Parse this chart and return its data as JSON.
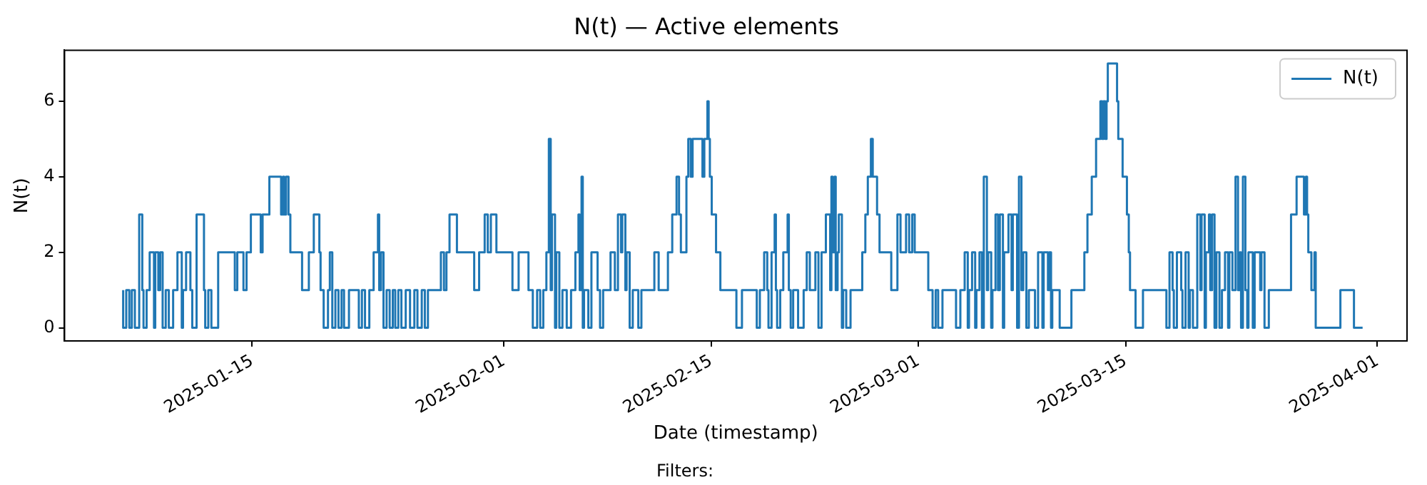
{
  "chart_data": {
    "type": "step",
    "title": "N(t) — Active elements",
    "xlabel": "Date (timestamp)",
    "ylabel": "N(t)",
    "annotations": [
      "Filters:"
    ],
    "legend": "top right",
    "grid": false,
    "marker": "none",
    "line_style": "solid",
    "xlim": [
      "2025-01-02T08:00",
      "2025-04-03T00:00"
    ],
    "xticks": [
      "2025-01-15",
      "2025-02-01",
      "2025-02-15",
      "2025-03-01",
      "2025-03-15",
      "2025-04-01"
    ],
    "ylim": [
      -0.35,
      7.35
    ],
    "yticks": [
      0,
      2,
      4,
      6
    ],
    "series": [
      {
        "name": "N(t)",
        "color": "#1f77b4",
        "x": [
          "2025-01-06T07:00",
          "2025-01-06T12:00",
          "2025-01-06T17:00",
          "2025-01-06T21:00",
          "2025-01-07T02:00",
          "2025-01-07T09:00",
          "2025-01-07T14:00",
          "2025-01-07T16:00",
          "2025-01-07T21:00",
          "2025-01-08T02:00",
          "2025-01-08T09:00",
          "2025-01-08T11:00",
          "2025-01-08T16:00",
          "2025-01-08T19:00",
          "2025-01-08T23:00",
          "2025-01-09T04:00",
          "2025-01-09T09:00",
          "2025-01-09T16:00",
          "2025-01-09T23:00",
          "2025-01-10T06:00",
          "2025-01-10T08:00",
          "2025-01-10T13:00",
          "2025-01-10T20:00",
          "2025-01-10T23:00",
          "2025-01-11T06:00",
          "2025-01-11T18:00",
          "2025-01-11T20:00",
          "2025-01-12T01:00",
          "2025-01-12T06:00",
          "2025-01-12T17:00",
          "2025-01-13T20:00",
          "2025-01-14T00:00",
          "2025-01-14T10:00",
          "2025-01-14T15:00",
          "2025-01-14T22:00",
          "2025-01-15T14:00",
          "2025-01-15T17:00",
          "2025-01-16T04:00",
          "2025-01-16T23:00",
          "2025-01-17T02:00",
          "2025-01-17T04:00",
          "2025-01-17T07:00",
          "2025-01-17T11:00",
          "2025-01-17T14:00",
          "2025-01-18T09:00",
          "2025-01-18T20:00",
          "2025-01-19T04:00",
          "2025-01-19T13:00",
          "2025-01-19T15:00",
          "2025-01-19T20:00",
          "2025-01-20T03:00",
          "2025-01-20T06:00",
          "2025-01-20T10:00",
          "2025-01-20T15:00",
          "2025-01-20T20:00",
          "2025-01-21T01:00",
          "2025-01-21T05:00",
          "2025-01-21T13:00",
          "2025-01-22T05:00",
          "2025-01-22T10:00",
          "2025-01-22T15:00",
          "2025-01-22T22:00",
          "2025-01-23T05:00",
          "2025-01-23T12:00",
          "2025-01-23T14:00",
          "2025-01-23T17:00",
          "2025-01-23T21:00",
          "2025-01-24T02:00",
          "2025-01-24T07:00",
          "2025-01-24T12:00",
          "2025-01-24T16:00",
          "2025-01-24T21:00",
          "2025-01-25T02:00",
          "2025-01-25T09:00",
          "2025-01-25T16:00",
          "2025-01-25T23:00",
          "2025-01-26T04:00",
          "2025-01-26T11:00",
          "2025-01-26T16:00",
          "2025-01-26T21:00",
          "2025-01-27T18:00",
          "2025-01-27T23:00",
          "2025-01-28T03:00",
          "2025-01-28T08:00",
          "2025-01-28T20:00",
          "2025-01-30T00:00",
          "2025-01-30T08:00",
          "2025-01-30T17:00",
          "2025-01-30T22:00",
          "2025-01-31T03:00",
          "2025-01-31T12:00",
          "2025-02-01T14:00",
          "2025-02-02T00:00",
          "2025-02-02T16:00",
          "2025-02-02T23:00",
          "2025-02-03T06:00",
          "2025-02-03T11:00",
          "2025-02-03T16:00",
          "2025-02-03T21:00",
          "2025-02-04T01:00",
          "2025-02-04T04:00",
          "2025-02-04T06:00",
          "2025-02-04T11:00",
          "2025-02-04T13:00",
          "2025-02-04T18:00",
          "2025-02-04T23:00",
          "2025-02-05T06:00",
          "2025-02-05T13:00",
          "2025-02-05T20:00",
          "2025-02-06T01:00",
          "2025-02-06T03:00",
          "2025-02-06T06:00",
          "2025-02-06T08:00",
          "2025-02-06T10:00",
          "2025-02-06T17:00",
          "2025-02-06T22:00",
          "2025-02-07T08:00",
          "2025-02-07T12:00",
          "2025-02-07T17:00",
          "2025-02-08T05:00",
          "2025-02-08T12:00",
          "2025-02-08T17:00",
          "2025-02-08T22:00",
          "2025-02-09T00:00",
          "2025-02-09T05:00",
          "2025-02-09T07:00",
          "2025-02-09T12:00",
          "2025-02-09T17:00",
          "2025-02-10T02:00",
          "2025-02-10T07:00",
          "2025-02-11T04:00",
          "2025-02-11T11:00",
          "2025-02-12T02:00",
          "2025-02-12T09:00",
          "2025-02-12T16:00",
          "2025-02-12T20:00",
          "2025-02-12T23:00",
          "2025-02-13T08:00",
          "2025-02-13T11:00",
          "2025-02-13T15:00",
          "2025-02-13T18:00",
          "2025-02-14T10:00",
          "2025-02-14T13:00",
          "2025-02-14T18:00",
          "2025-02-14T20:00",
          "2025-02-14T22:00",
          "2025-02-15T01:00",
          "2025-02-15T08:00",
          "2025-02-15T15:00",
          "2025-02-16T17:00",
          "2025-02-17T02:00",
          "2025-02-18T02:00",
          "2025-02-18T07:00",
          "2025-02-18T14:00",
          "2025-02-18T19:00",
          "2025-02-18T21:00",
          "2025-02-19T02:00",
          "2025-02-19T07:00",
          "2025-02-19T09:00",
          "2025-02-19T11:00",
          "2025-02-19T16:00",
          "2025-02-19T21:00",
          "2025-02-20T04:00",
          "2025-02-20T06:00",
          "2025-02-20T09:00",
          "2025-02-20T13:00",
          "2025-02-20T21:00",
          "2025-02-21T06:00",
          "2025-02-21T11:00",
          "2025-02-21T16:00",
          "2025-02-22T01:00",
          "2025-02-22T06:00",
          "2025-02-22T11:00",
          "2025-02-22T18:00",
          "2025-02-23T01:00",
          "2025-02-23T03:00",
          "2025-02-23T05:00",
          "2025-02-23T08:00",
          "2025-02-23T10:00",
          "2025-02-23T13:00",
          "2025-02-23T15:00",
          "2025-02-23T20:00",
          "2025-02-23T22:00",
          "2025-02-24T03:00",
          "2025-02-24T10:00",
          "2025-02-25T05:00",
          "2025-02-25T10:00",
          "2025-02-25T14:00",
          "2025-02-25T19:00",
          "2025-02-25T22:00",
          "2025-02-26T05:00",
          "2025-02-26T09:00",
          "2025-02-27T04:00",
          "2025-02-27T14:00",
          "2025-02-27T19:00",
          "2025-02-28T04:00",
          "2025-02-28T09:00",
          "2025-02-28T14:00",
          "2025-02-28T18:00",
          "2025-03-01T16:00",
          "2025-03-01T23:00",
          "2025-03-02T04:00",
          "2025-03-02T08:00",
          "2025-03-02T15:00",
          "2025-03-03T13:00",
          "2025-03-03T20:00",
          "2025-03-04T03:00",
          "2025-03-04T08:00",
          "2025-03-04T10:00",
          "2025-03-04T15:00",
          "2025-03-04T20:00",
          "2025-03-04T22:00",
          "2025-03-05T03:00",
          "2025-03-05T07:00",
          "2025-03-05T10:00",
          "2025-03-05T15:00",
          "2025-03-05T17:00",
          "2025-03-05T22:00",
          "2025-03-06T00:00",
          "2025-03-06T05:00",
          "2025-03-06T09:00",
          "2025-03-06T12:00",
          "2025-03-06T17:00",
          "2025-03-06T19:00",
          "2025-03-07T02:00",
          "2025-03-07T07:00",
          "2025-03-07T09:00",
          "2025-03-07T16:00",
          "2025-03-07T19:00",
          "2025-03-07T23:00",
          "2025-03-08T02:00",
          "2025-03-08T07:00",
          "2025-03-08T11:00",
          "2025-03-08T21:00",
          "2025-03-09T02:00",
          "2025-03-09T09:00",
          "2025-03-09T11:00",
          "2025-03-09T18:00",
          "2025-03-09T20:00",
          "2025-03-09T23:00",
          "2025-03-10T01:00",
          "2025-03-10T13:00",
          "2025-03-11T08:00",
          "2025-03-12T05:00",
          "2025-03-12T10:00",
          "2025-03-12T17:00",
          "2025-03-13T00:00",
          "2025-03-13T07:00",
          "2025-03-13T10:00",
          "2025-03-13T12:00",
          "2025-03-13T15:00",
          "2025-03-13T17:00",
          "2025-03-13T19:00",
          "2025-03-14T10:00",
          "2025-03-14T12:00",
          "2025-03-14T19:00",
          "2025-03-15T02:00",
          "2025-03-15T05:00",
          "2025-03-15T07:00",
          "2025-03-15T16:00",
          "2025-03-16T04:00",
          "2025-03-17T18:00",
          "2025-03-17T23:00",
          "2025-03-18T04:00",
          "2025-03-18T06:00",
          "2025-03-18T11:00",
          "2025-03-18T18:00",
          "2025-03-18T20:00",
          "2025-03-19T01:00",
          "2025-03-19T06:00",
          "2025-03-19T08:00",
          "2025-03-19T13:00",
          "2025-03-19T20:00",
          "2025-03-20T01:00",
          "2025-03-20T03:00",
          "2025-03-20T08:00",
          "2025-03-20T10:00",
          "2025-03-20T15:00",
          "2025-03-20T17:00",
          "2025-03-20T20:00",
          "2025-03-21T00:00",
          "2025-03-21T03:00",
          "2025-03-21T08:00",
          "2025-03-21T12:00",
          "2025-03-21T17:00",
          "2025-03-21T22:00",
          "2025-03-22T00:00",
          "2025-03-22T05:00",
          "2025-03-22T10:00",
          "2025-03-22T14:00",
          "2025-03-22T17:00",
          "2025-03-22T19:00",
          "2025-03-22T22:00",
          "2025-03-23T02:00",
          "2025-03-23T05:00",
          "2025-03-23T07:00",
          "2025-03-23T14:00",
          "2025-03-23T17:00",
          "2025-03-24T02:00",
          "2025-03-24T04:00",
          "2025-03-24T09:00",
          "2025-03-24T11:00",
          "2025-03-24T16:00",
          "2025-03-26T04:00",
          "2025-03-26T13:00",
          "2025-03-27T01:00",
          "2025-03-27T04:00",
          "2025-03-27T06:00",
          "2025-03-27T08:00",
          "2025-03-27T13:00",
          "2025-03-27T18:00",
          "2025-03-27T20:00",
          "2025-03-29T12:00",
          "2025-03-30T10:00",
          "2025-03-31T00:00"
        ],
        "values": [
          1,
          0,
          1,
          0,
          1,
          0,
          3,
          1,
          0,
          1,
          2,
          0,
          2,
          1,
          2,
          0,
          1,
          0,
          1,
          2,
          0,
          1,
          2,
          1,
          0,
          3,
          1,
          0,
          1,
          0,
          2,
          1,
          2,
          1,
          2,
          3,
          2,
          3,
          4,
          3,
          4,
          3,
          4,
          3,
          2,
          1,
          2,
          3,
          2,
          1,
          0,
          1,
          2,
          0,
          1,
          0,
          1,
          0,
          1,
          0,
          1,
          0,
          1,
          2,
          3,
          1,
          2,
          0,
          1,
          0,
          1,
          0,
          1,
          0,
          1,
          0,
          1,
          0,
          1,
          0,
          1,
          2,
          1,
          2,
          3,
          2,
          1,
          2,
          3,
          2,
          3,
          2,
          1,
          2,
          1,
          0,
          1,
          0,
          1,
          2,
          5,
          1,
          3,
          0,
          2,
          0,
          1,
          0,
          1,
          2,
          3,
          1,
          4,
          0,
          1,
          0,
          2,
          1,
          0,
          1,
          2,
          1,
          3,
          2,
          3,
          1,
          2,
          0,
          1,
          0,
          1,
          2,
          1,
          2,
          3,
          4,
          3,
          2,
          4,
          5,
          4,
          5,
          4,
          5,
          6,
          5,
          4,
          3,
          2,
          1,
          0,
          1,
          0,
          1,
          2,
          1,
          0,
          2,
          3,
          1,
          0,
          1,
          2,
          3,
          1,
          0,
          1,
          0,
          1,
          2,
          1,
          2,
          0,
          2,
          3,
          1,
          4,
          2,
          4,
          1,
          2,
          3,
          0,
          1,
          0,
          1,
          2,
          3,
          4,
          5,
          4,
          3,
          2,
          1,
          3,
          2,
          3,
          2,
          3,
          2,
          1,
          0,
          1,
          0,
          1,
          0,
          1,
          2,
          0,
          1,
          2,
          0,
          1,
          2,
          0,
          4,
          1,
          2,
          0,
          1,
          3,
          1,
          3,
          0,
          2,
          3,
          1,
          3,
          0,
          4,
          1,
          2,
          0,
          1,
          0,
          2,
          0,
          2,
          1,
          2,
          0,
          1,
          0,
          1,
          2,
          3,
          4,
          5,
          6,
          5,
          6,
          5,
          6,
          7,
          6,
          5,
          4,
          3,
          2,
          1,
          0,
          1,
          0,
          2,
          1,
          0,
          2,
          1,
          0,
          2,
          0,
          1,
          0,
          3,
          1,
          3,
          0,
          2,
          3,
          1,
          3,
          0,
          2,
          0,
          1,
          2,
          0,
          2,
          1,
          4,
          1,
          2,
          0,
          4,
          1,
          0,
          2,
          0,
          2,
          1,
          2,
          0,
          0,
          1,
          3,
          4,
          3,
          4,
          3,
          2,
          1,
          2,
          0,
          1,
          0
        ]
      }
    ]
  }
}
